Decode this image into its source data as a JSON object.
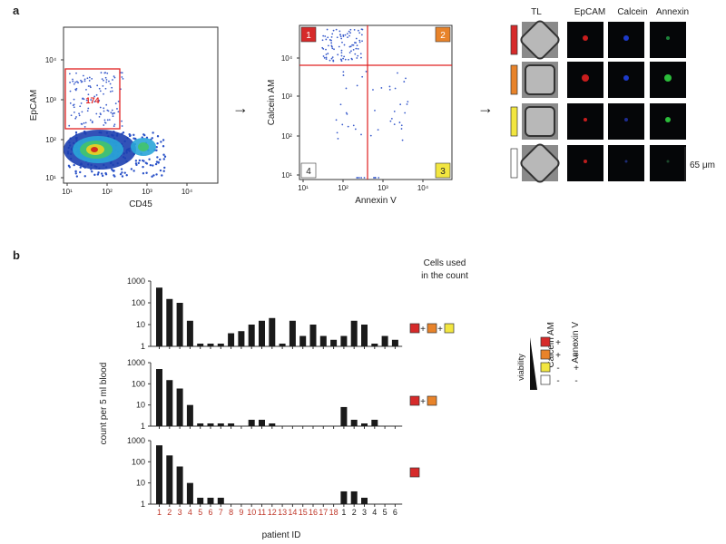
{
  "panel_a": {
    "label": "a",
    "plot1": {
      "ylabel": "EpCAM",
      "xlabel": "CD45",
      "yticks": [
        "10¹",
        "10²",
        "10³",
        "10⁴"
      ],
      "xticks": [
        "10¹",
        "10²",
        "10³",
        "10⁴"
      ],
      "gate_count": "174"
    },
    "plot2": {
      "ylabel": "Calcein AM",
      "xlabel": "Annexin V",
      "yticks": [
        "10¹",
        "10²",
        "10³",
        "10⁴"
      ],
      "xticks": [
        "10¹",
        "10²",
        "10³",
        "10⁴"
      ],
      "quadrants": [
        "1",
        "2",
        "3",
        "4"
      ]
    },
    "arrow": "→",
    "image_grid": {
      "headers": [
        "TL",
        "EpCAM",
        "Calcein",
        "Annexin"
      ],
      "scale_bar": "65 μm",
      "row_colors": [
        "#d62a2a",
        "#e8832a",
        "#f2e640",
        "#ffffff"
      ]
    }
  },
  "panel_b": {
    "label": "b",
    "ylabel": "count per 5 ml blood",
    "xlabel": "patient ID",
    "legend_title_line1": "Cells used",
    "legend_title_line2": "in the count",
    "yticks": [
      "1",
      "10",
      "100",
      "1000"
    ],
    "patient_ids": [
      "1",
      "2",
      "3",
      "4",
      "5",
      "6",
      "7",
      "8",
      "9",
      "10",
      "11",
      "12",
      "13",
      "14",
      "15",
      "16",
      "17",
      "18",
      "1",
      "2",
      "3",
      "4",
      "5",
      "6"
    ],
    "plus": "+",
    "viability": {
      "label": "viability",
      "col1": "Calcein AM",
      "col2": "Annexin V",
      "rows": [
        {
          "color": "#d62a2a",
          "calcein": "+",
          "annexin": "-"
        },
        {
          "color": "#e8832a",
          "calcein": "+",
          "annexin": "+"
        },
        {
          "color": "#f2e640",
          "calcein": "-",
          "annexin": "+"
        },
        {
          "color": "#ffffff",
          "calcein": "-",
          "annexin": "-"
        }
      ]
    },
    "colors": {
      "red": "#d62a2a",
      "orange": "#e8832a",
      "yellow": "#f2e640",
      "id_red": "#c0392b",
      "id_dark": "#222222"
    }
  },
  "chart_data": [
    {
      "type": "bar",
      "title": "Cells used: red + orange + yellow",
      "xlabel": "patient ID",
      "ylabel": "count per 5 ml blood",
      "yscale": "log",
      "ylim": [
        1,
        1000
      ],
      "categories": [
        "1",
        "2",
        "3",
        "4",
        "5",
        "6",
        "7",
        "8",
        "9",
        "10",
        "11",
        "12",
        "13",
        "14",
        "15",
        "16",
        "17",
        "18",
        "1",
        "2",
        "3",
        "4",
        "5",
        "6"
      ],
      "values": [
        500,
        150,
        100,
        15,
        1,
        1,
        1,
        4,
        5,
        10,
        15,
        20,
        1,
        15,
        3,
        10,
        3,
        2,
        3,
        15,
        10,
        1,
        3,
        2
      ]
    },
    {
      "type": "bar",
      "title": "Cells used: red + orange",
      "xlabel": "patient ID",
      "ylabel": "count per 5 ml blood",
      "yscale": "log",
      "ylim": [
        1,
        1000
      ],
      "categories": [
        "1",
        "2",
        "3",
        "4",
        "5",
        "6",
        "7",
        "8",
        "9",
        "10",
        "11",
        "12",
        "13",
        "14",
        "15",
        "16",
        "17",
        "18",
        "1",
        "2",
        "3",
        "4",
        "5",
        "6"
      ],
      "values": [
        500,
        150,
        60,
        10,
        1,
        1,
        1,
        1,
        0,
        2,
        2,
        1,
        0,
        0,
        0,
        0,
        0,
        0,
        8,
        2,
        1,
        2,
        0,
        0
      ]
    },
    {
      "type": "bar",
      "title": "Cells used: red",
      "xlabel": "patient ID",
      "ylabel": "count per 5 ml blood",
      "yscale": "log",
      "ylim": [
        1,
        1000
      ],
      "categories": [
        "1",
        "2",
        "3",
        "4",
        "5",
        "6",
        "7",
        "8",
        "9",
        "10",
        "11",
        "12",
        "13",
        "14",
        "15",
        "16",
        "17",
        "18",
        "1",
        "2",
        "3",
        "4",
        "5",
        "6"
      ],
      "values": [
        600,
        200,
        60,
        10,
        2,
        2,
        2,
        0,
        0,
        0,
        0,
        0,
        0,
        0,
        0,
        0,
        0,
        0,
        4,
        4,
        2,
        0,
        0,
        0
      ]
    }
  ]
}
